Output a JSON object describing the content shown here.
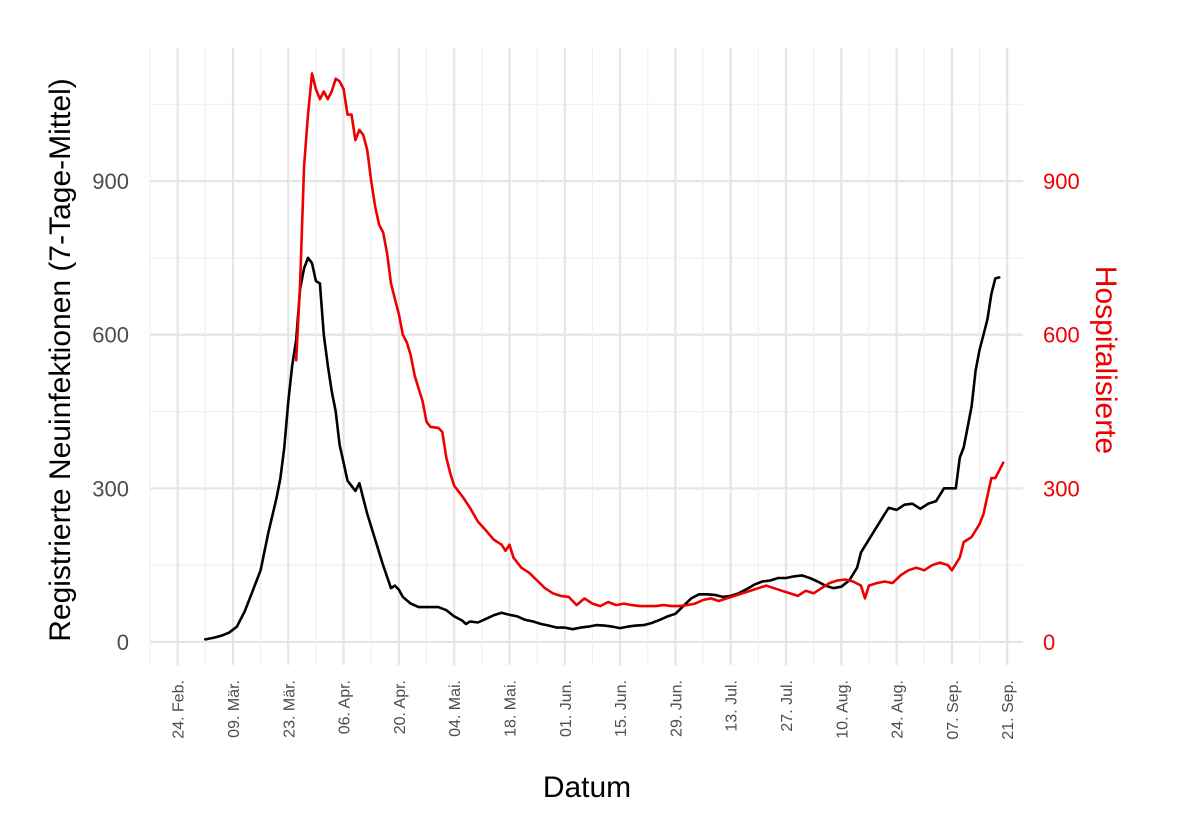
{
  "chart_data": {
    "type": "line",
    "xlabel": "Datum",
    "ylabel_left": "Registrierte Neuinfektionen (7-Tage-Mittel)",
    "ylabel_right": "Hospitalisierte",
    "x_ticks": [
      {
        "date": "2020-02-24",
        "label": "24. Feb."
      },
      {
        "date": "2020-03-09",
        "label": "09. Mär."
      },
      {
        "date": "2020-03-23",
        "label": "23. Mär."
      },
      {
        "date": "2020-04-06",
        "label": "06. Apr."
      },
      {
        "date": "2020-04-20",
        "label": "20. Apr."
      },
      {
        "date": "2020-05-04",
        "label": "04. Mai."
      },
      {
        "date": "2020-05-18",
        "label": "18. Mai."
      },
      {
        "date": "2020-06-01",
        "label": "01. Jun."
      },
      {
        "date": "2020-06-15",
        "label": "15. Jun."
      },
      {
        "date": "2020-06-29",
        "label": "29. Jun."
      },
      {
        "date": "2020-07-13",
        "label": "13. Jul."
      },
      {
        "date": "2020-07-27",
        "label": "27. Jul."
      },
      {
        "date": "2020-08-10",
        "label": "10. Aug."
      },
      {
        "date": "2020-08-24",
        "label": "24. Aug."
      },
      {
        "date": "2020-09-07",
        "label": "07. Sep."
      },
      {
        "date": "2020-09-21",
        "label": "21. Sep."
      }
    ],
    "xlim": [
      "2020-02-17",
      "2020-09-25"
    ],
    "y_left": {
      "ticks": [
        "0",
        "300",
        "600",
        "900"
      ],
      "ylim": [
        -45,
        1160
      ],
      "color": "#1a1a1a"
    },
    "y_right": {
      "ticks": [
        "0",
        "300",
        "600",
        "900"
      ],
      "ylim": [
        -45,
        1160
      ],
      "color": "#ee0000"
    },
    "grid": true,
    "series": [
      {
        "axis": "left",
        "color": "#000000",
        "points": [
          [
            "2020-03-02",
            5
          ],
          [
            "2020-03-04",
            8
          ],
          [
            "2020-03-06",
            12
          ],
          [
            "2020-03-08",
            18
          ],
          [
            "2020-03-10",
            30
          ],
          [
            "2020-03-12",
            60
          ],
          [
            "2020-03-14",
            100
          ],
          [
            "2020-03-16",
            140
          ],
          [
            "2020-03-18",
            215
          ],
          [
            "2020-03-20",
            280
          ],
          [
            "2020-03-21",
            320
          ],
          [
            "2020-03-22",
            380
          ],
          [
            "2020-03-23",
            470
          ],
          [
            "2020-03-24",
            540
          ],
          [
            "2020-03-25",
            590
          ],
          [
            "2020-03-26",
            690
          ],
          [
            "2020-03-27",
            730
          ],
          [
            "2020-03-28",
            750
          ],
          [
            "2020-03-29",
            740
          ],
          [
            "2020-03-30",
            705
          ],
          [
            "2020-03-31",
            700
          ],
          [
            "2020-04-01",
            600
          ],
          [
            "2020-04-02",
            540
          ],
          [
            "2020-04-03",
            490
          ],
          [
            "2020-04-04",
            450
          ],
          [
            "2020-04-05",
            385
          ],
          [
            "2020-04-06",
            350
          ],
          [
            "2020-04-07",
            315
          ],
          [
            "2020-04-08",
            305
          ],
          [
            "2020-04-09",
            295
          ],
          [
            "2020-04-10",
            310
          ],
          [
            "2020-04-11",
            280
          ],
          [
            "2020-04-12",
            250
          ],
          [
            "2020-04-14",
            200
          ],
          [
            "2020-04-16",
            150
          ],
          [
            "2020-04-18",
            105
          ],
          [
            "2020-04-19",
            110
          ],
          [
            "2020-04-20",
            102
          ],
          [
            "2020-04-21",
            88
          ],
          [
            "2020-04-23",
            75
          ],
          [
            "2020-04-25",
            68
          ],
          [
            "2020-04-28",
            68
          ],
          [
            "2020-04-30",
            68
          ],
          [
            "2020-05-02",
            62
          ],
          [
            "2020-05-04",
            50
          ],
          [
            "2020-05-06",
            42
          ],
          [
            "2020-05-07",
            35
          ],
          [
            "2020-05-08",
            40
          ],
          [
            "2020-05-10",
            38
          ],
          [
            "2020-05-12",
            45
          ],
          [
            "2020-05-14",
            52
          ],
          [
            "2020-05-16",
            57
          ],
          [
            "2020-05-18",
            53
          ],
          [
            "2020-05-20",
            50
          ],
          [
            "2020-05-22",
            43
          ],
          [
            "2020-05-24",
            40
          ],
          [
            "2020-05-26",
            35
          ],
          [
            "2020-05-28",
            32
          ],
          [
            "2020-05-30",
            28
          ],
          [
            "2020-06-01",
            28
          ],
          [
            "2020-06-03",
            25
          ],
          [
            "2020-06-05",
            28
          ],
          [
            "2020-06-07",
            30
          ],
          [
            "2020-06-09",
            33
          ],
          [
            "2020-06-11",
            32
          ],
          [
            "2020-06-13",
            30
          ],
          [
            "2020-06-15",
            27
          ],
          [
            "2020-06-17",
            30
          ],
          [
            "2020-06-19",
            32
          ],
          [
            "2020-06-21",
            33
          ],
          [
            "2020-06-23",
            37
          ],
          [
            "2020-06-25",
            43
          ],
          [
            "2020-06-27",
            50
          ],
          [
            "2020-06-29",
            55
          ],
          [
            "2020-07-01",
            70
          ],
          [
            "2020-07-03",
            85
          ],
          [
            "2020-07-05",
            93
          ],
          [
            "2020-07-07",
            93
          ],
          [
            "2020-07-09",
            92
          ],
          [
            "2020-07-11",
            88
          ],
          [
            "2020-07-13",
            90
          ],
          [
            "2020-07-15",
            95
          ],
          [
            "2020-07-17",
            103
          ],
          [
            "2020-07-19",
            112
          ],
          [
            "2020-07-21",
            118
          ],
          [
            "2020-07-23",
            120
          ],
          [
            "2020-07-25",
            125
          ],
          [
            "2020-07-27",
            125
          ],
          [
            "2020-07-29",
            128
          ],
          [
            "2020-07-31",
            130
          ],
          [
            "2020-08-02",
            125
          ],
          [
            "2020-08-04",
            118
          ],
          [
            "2020-08-06",
            110
          ],
          [
            "2020-08-08",
            105
          ],
          [
            "2020-08-10",
            108
          ],
          [
            "2020-08-12",
            120
          ],
          [
            "2020-08-14",
            145
          ],
          [
            "2020-08-15",
            175
          ],
          [
            "2020-08-17",
            200
          ],
          [
            "2020-08-19",
            225
          ],
          [
            "2020-08-21",
            250
          ],
          [
            "2020-08-22",
            262
          ],
          [
            "2020-08-24",
            258
          ],
          [
            "2020-08-26",
            268
          ],
          [
            "2020-08-28",
            270
          ],
          [
            "2020-08-30",
            260
          ],
          [
            "2020-09-01",
            270
          ],
          [
            "2020-09-03",
            275
          ],
          [
            "2020-09-05",
            300
          ],
          [
            "2020-09-07",
            300
          ],
          [
            "2020-09-08",
            300
          ],
          [
            "2020-09-09",
            360
          ],
          [
            "2020-09-10",
            380
          ],
          [
            "2020-09-11",
            420
          ],
          [
            "2020-09-12",
            460
          ],
          [
            "2020-09-13",
            530
          ],
          [
            "2020-09-14",
            570
          ],
          [
            "2020-09-15",
            600
          ],
          [
            "2020-09-16",
            630
          ],
          [
            "2020-09-17",
            680
          ],
          [
            "2020-09-18",
            710
          ],
          [
            "2020-09-19",
            712
          ]
        ]
      },
      {
        "axis": "right",
        "color": "#ee0000",
        "points": [
          [
            "2020-03-25",
            550
          ],
          [
            "2020-03-26",
            700
          ],
          [
            "2020-03-27",
            930
          ],
          [
            "2020-03-28",
            1030
          ],
          [
            "2020-03-29",
            1110
          ],
          [
            "2020-03-30",
            1080
          ],
          [
            "2020-03-31",
            1060
          ],
          [
            "2020-04-01",
            1075
          ],
          [
            "2020-04-02",
            1060
          ],
          [
            "2020-04-03",
            1075
          ],
          [
            "2020-04-04",
            1100
          ],
          [
            "2020-04-05",
            1095
          ],
          [
            "2020-04-06",
            1080
          ],
          [
            "2020-04-07",
            1030
          ],
          [
            "2020-04-08",
            1030
          ],
          [
            "2020-04-09",
            980
          ],
          [
            "2020-04-10",
            1000
          ],
          [
            "2020-04-11",
            990
          ],
          [
            "2020-04-12",
            960
          ],
          [
            "2020-04-13",
            900
          ],
          [
            "2020-04-14",
            850
          ],
          [
            "2020-04-15",
            815
          ],
          [
            "2020-04-16",
            800
          ],
          [
            "2020-04-17",
            760
          ],
          [
            "2020-04-18",
            700
          ],
          [
            "2020-04-19",
            670
          ],
          [
            "2020-04-20",
            640
          ],
          [
            "2020-04-21",
            600
          ],
          [
            "2020-04-22",
            585
          ],
          [
            "2020-04-23",
            560
          ],
          [
            "2020-04-24",
            520
          ],
          [
            "2020-04-25",
            495
          ],
          [
            "2020-04-26",
            470
          ],
          [
            "2020-04-27",
            430
          ],
          [
            "2020-04-28",
            420
          ],
          [
            "2020-04-30",
            418
          ],
          [
            "2020-05-01",
            410
          ],
          [
            "2020-05-02",
            360
          ],
          [
            "2020-05-03",
            330
          ],
          [
            "2020-05-04",
            305
          ],
          [
            "2020-05-06",
            285
          ],
          [
            "2020-05-08",
            262
          ],
          [
            "2020-05-10",
            235
          ],
          [
            "2020-05-12",
            218
          ],
          [
            "2020-05-14",
            200
          ],
          [
            "2020-05-16",
            190
          ],
          [
            "2020-05-17",
            178
          ],
          [
            "2020-05-18",
            190
          ],
          [
            "2020-05-19",
            165
          ],
          [
            "2020-05-21",
            145
          ],
          [
            "2020-05-23",
            135
          ],
          [
            "2020-05-25",
            120
          ],
          [
            "2020-05-27",
            105
          ],
          [
            "2020-05-29",
            95
          ],
          [
            "2020-05-31",
            90
          ],
          [
            "2020-06-02",
            88
          ],
          [
            "2020-06-04",
            72
          ],
          [
            "2020-06-06",
            85
          ],
          [
            "2020-06-08",
            75
          ],
          [
            "2020-06-10",
            70
          ],
          [
            "2020-06-12",
            78
          ],
          [
            "2020-06-14",
            72
          ],
          [
            "2020-06-16",
            75
          ],
          [
            "2020-06-18",
            72
          ],
          [
            "2020-06-20",
            70
          ],
          [
            "2020-06-22",
            70
          ],
          [
            "2020-06-24",
            70
          ],
          [
            "2020-06-26",
            72
          ],
          [
            "2020-06-28",
            70
          ],
          [
            "2020-06-30",
            70
          ],
          [
            "2020-07-02",
            72
          ],
          [
            "2020-07-04",
            75
          ],
          [
            "2020-07-06",
            82
          ],
          [
            "2020-07-08",
            85
          ],
          [
            "2020-07-10",
            80
          ],
          [
            "2020-07-12",
            85
          ],
          [
            "2020-07-14",
            90
          ],
          [
            "2020-07-16",
            95
          ],
          [
            "2020-07-18",
            100
          ],
          [
            "2020-07-20",
            105
          ],
          [
            "2020-07-22",
            110
          ],
          [
            "2020-07-24",
            105
          ],
          [
            "2020-07-26",
            100
          ],
          [
            "2020-07-28",
            95
          ],
          [
            "2020-07-30",
            90
          ],
          [
            "2020-08-01",
            100
          ],
          [
            "2020-08-03",
            95
          ],
          [
            "2020-08-05",
            105
          ],
          [
            "2020-08-07",
            115
          ],
          [
            "2020-08-09",
            120
          ],
          [
            "2020-08-11",
            122
          ],
          [
            "2020-08-13",
            118
          ],
          [
            "2020-08-15",
            110
          ],
          [
            "2020-08-16",
            85
          ],
          [
            "2020-08-17",
            110
          ],
          [
            "2020-08-19",
            115
          ],
          [
            "2020-08-21",
            118
          ],
          [
            "2020-08-23",
            115
          ],
          [
            "2020-08-25",
            130
          ],
          [
            "2020-08-27",
            140
          ],
          [
            "2020-08-29",
            145
          ],
          [
            "2020-08-31",
            140
          ],
          [
            "2020-09-02",
            150
          ],
          [
            "2020-09-04",
            155
          ],
          [
            "2020-09-06",
            150
          ],
          [
            "2020-09-07",
            140
          ],
          [
            "2020-09-09",
            165
          ],
          [
            "2020-09-10",
            195
          ],
          [
            "2020-09-12",
            205
          ],
          [
            "2020-09-14",
            230
          ],
          [
            "2020-09-15",
            250
          ],
          [
            "2020-09-16",
            285
          ],
          [
            "2020-09-17",
            320
          ],
          [
            "2020-09-18",
            320
          ],
          [
            "2020-09-19",
            335
          ],
          [
            "2020-09-20",
            350
          ]
        ]
      }
    ]
  }
}
